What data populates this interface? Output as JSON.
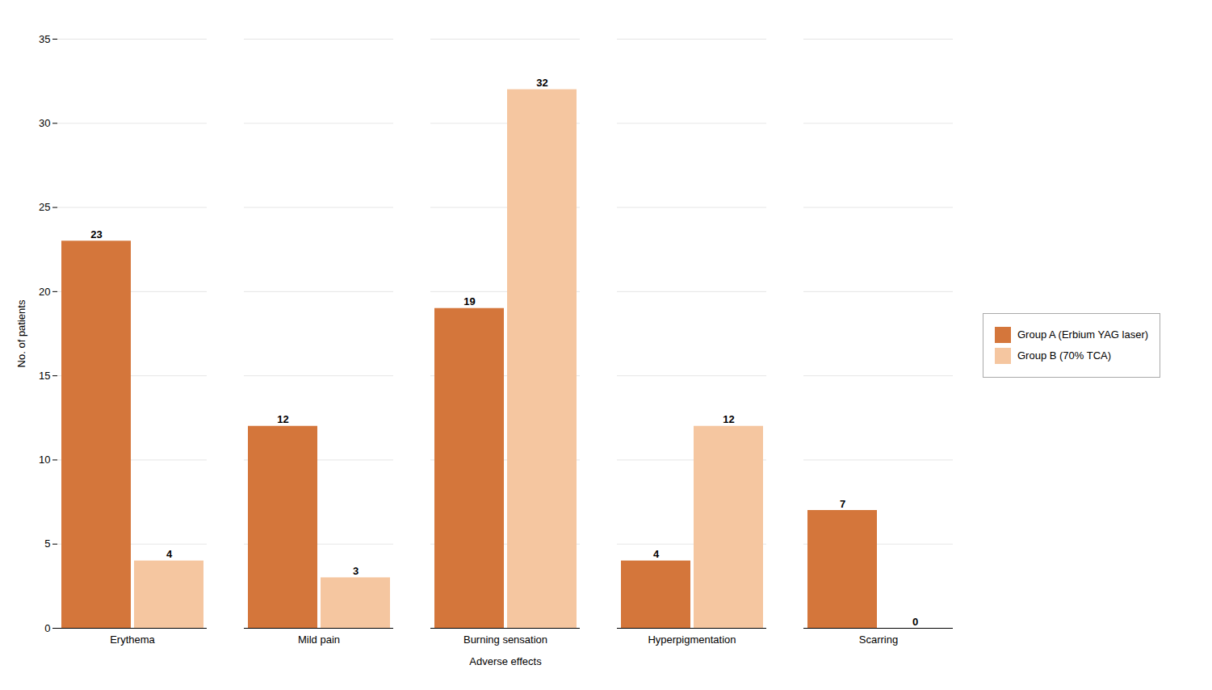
{
  "chart_data": {
    "type": "bar",
    "categories": [
      "Erythema",
      "Mild pain",
      "Burning sensation",
      "Hyperpigmentation",
      "Scarring"
    ],
    "series": [
      {
        "name": "Group A (Erbium YAG laser)",
        "color": "#D4763B",
        "values": [
          23,
          12,
          19,
          4,
          7
        ]
      },
      {
        "name": "Group B (70% TCA)",
        "color": "#F5C6A0",
        "values": [
          4,
          3,
          32,
          12,
          0
        ]
      }
    ],
    "xlabel": "Adverse effects",
    "ylabel": "No. of patients",
    "ylim": [
      0,
      35
    ],
    "yticks": [
      0,
      5,
      10,
      15,
      20,
      25,
      30,
      35
    ],
    "grid": true,
    "data_labels": true,
    "legend": "right"
  }
}
